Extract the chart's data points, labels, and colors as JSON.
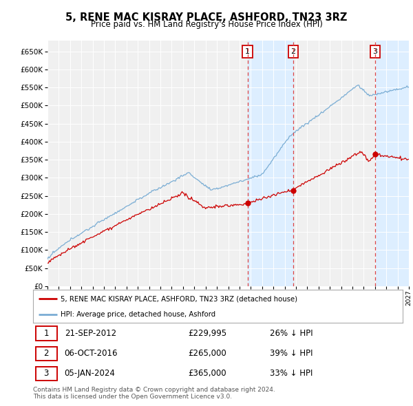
{
  "title": "5, RENE MAC KISRAY PLACE, ASHFORD, TN23 3RZ",
  "subtitle": "Price paid vs. HM Land Registry's House Price Index (HPI)",
  "legend_label_red": "5, RENE MAC KISRAY PLACE, ASHFORD, TN23 3RZ (detached house)",
  "legend_label_blue": "HPI: Average price, detached house, Ashford",
  "transactions": [
    {
      "num": 1,
      "date": "21-SEP-2012",
      "price": 229995,
      "pct": "26%",
      "dir": "↓"
    },
    {
      "num": 2,
      "date": "06-OCT-2016",
      "price": 265000,
      "pct": "39%",
      "dir": "↓"
    },
    {
      "num": 3,
      "date": "05-JAN-2024",
      "price": 365000,
      "pct": "33%",
      "dir": "↓"
    }
  ],
  "transaction_years": [
    2012.72,
    2016.76,
    2024.01
  ],
  "transaction_prices": [
    229995,
    265000,
    365000
  ],
  "footer": "Contains HM Land Registry data © Crown copyright and database right 2024.\nThis data is licensed under the Open Government Licence v3.0.",
  "ylim": [
    0,
    680000
  ],
  "yticks": [
    0,
    50000,
    100000,
    150000,
    200000,
    250000,
    300000,
    350000,
    400000,
    450000,
    500000,
    550000,
    600000,
    650000
  ],
  "color_red": "#cc0000",
  "color_blue": "#7aadd4",
  "color_vline": "#dd4444",
  "highlight_color": "#ddeeff",
  "background_color": "#f0f0f0",
  "xmin": 1995,
  "xmax": 2027
}
